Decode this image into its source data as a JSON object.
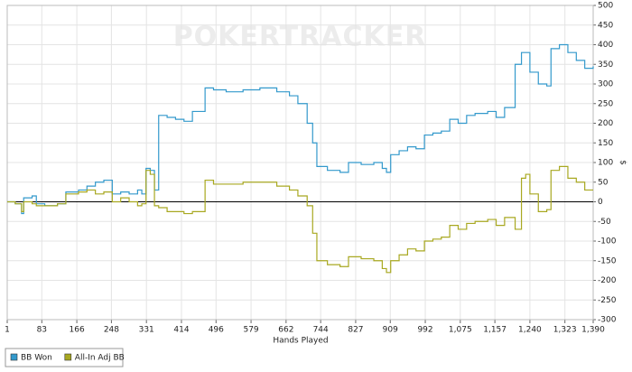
{
  "chart_data": {
    "type": "line",
    "watermark": "POKERTRACKER",
    "xlabel": "Hands Played",
    "ylabel": "$",
    "x": [
      1,
      20,
      35,
      40,
      60,
      70,
      90,
      120,
      140,
      170,
      190,
      210,
      230,
      250,
      270,
      290,
      310,
      320,
      330,
      340,
      350,
      360,
      380,
      400,
      420,
      440,
      455,
      470,
      490,
      520,
      560,
      600,
      640,
      670,
      690,
      712,
      725,
      735,
      760,
      790,
      810,
      840,
      870,
      890,
      900,
      910,
      930,
      950,
      970,
      990,
      1010,
      1030,
      1050,
      1070,
      1090,
      1110,
      1140,
      1160,
      1180,
      1205,
      1220,
      1230,
      1240,
      1260,
      1280,
      1290,
      1310,
      1330,
      1350,
      1370,
      1390
    ],
    "series": [
      {
        "name": "BB Won",
        "color": "#3399cc",
        "values": [
          0,
          -5,
          -30,
          10,
          15,
          -5,
          -10,
          -5,
          25,
          30,
          40,
          50,
          55,
          20,
          25,
          20,
          30,
          20,
          85,
          80,
          30,
          220,
          215,
          210,
          205,
          230,
          230,
          290,
          285,
          280,
          285,
          290,
          280,
          270,
          250,
          200,
          150,
          90,
          80,
          75,
          100,
          95,
          100,
          85,
          75,
          120,
          130,
          140,
          135,
          170,
          175,
          180,
          210,
          200,
          220,
          225,
          230,
          215,
          240,
          350,
          380,
          380,
          330,
          300,
          295,
          390,
          400,
          380,
          360,
          340,
          345
        ]
      },
      {
        "name": "All-In Adj BB",
        "color": "#a8a820",
        "values": [
          0,
          -5,
          -25,
          0,
          -5,
          -10,
          -10,
          -5,
          20,
          25,
          30,
          20,
          25,
          0,
          10,
          0,
          -10,
          -5,
          80,
          70,
          -10,
          -15,
          -25,
          -25,
          -30,
          -25,
          -25,
          55,
          45,
          45,
          50,
          50,
          40,
          30,
          15,
          -10,
          -80,
          -150,
          -160,
          -165,
          -140,
          -145,
          -150,
          -170,
          -180,
          -150,
          -135,
          -120,
          -125,
          -100,
          -95,
          -90,
          -60,
          -70,
          -55,
          -50,
          -45,
          -60,
          -40,
          -70,
          60,
          70,
          20,
          -25,
          -20,
          80,
          90,
          60,
          50,
          30,
          30
        ]
      }
    ],
    "xlim": [
      1,
      1390
    ],
    "xticks": [
      1,
      83,
      166,
      248,
      331,
      414,
      496,
      579,
      662,
      744,
      827,
      909,
      992,
      {
        "value": 1075,
        "label": "1,075"
      },
      {
        "value": 1157,
        "label": "1,157"
      },
      {
        "value": 1240,
        "label": "1,240"
      },
      {
        "value": 1323,
        "label": "1,323"
      },
      {
        "value": 1390,
        "label": "1,390"
      }
    ],
    "ylim": [
      -300,
      500
    ],
    "yticks": [
      -300,
      -250,
      -200,
      -150,
      -100,
      -50,
      0,
      50,
      100,
      150,
      200,
      250,
      300,
      350,
      400,
      450,
      500
    ],
    "grid": true,
    "step": true
  }
}
